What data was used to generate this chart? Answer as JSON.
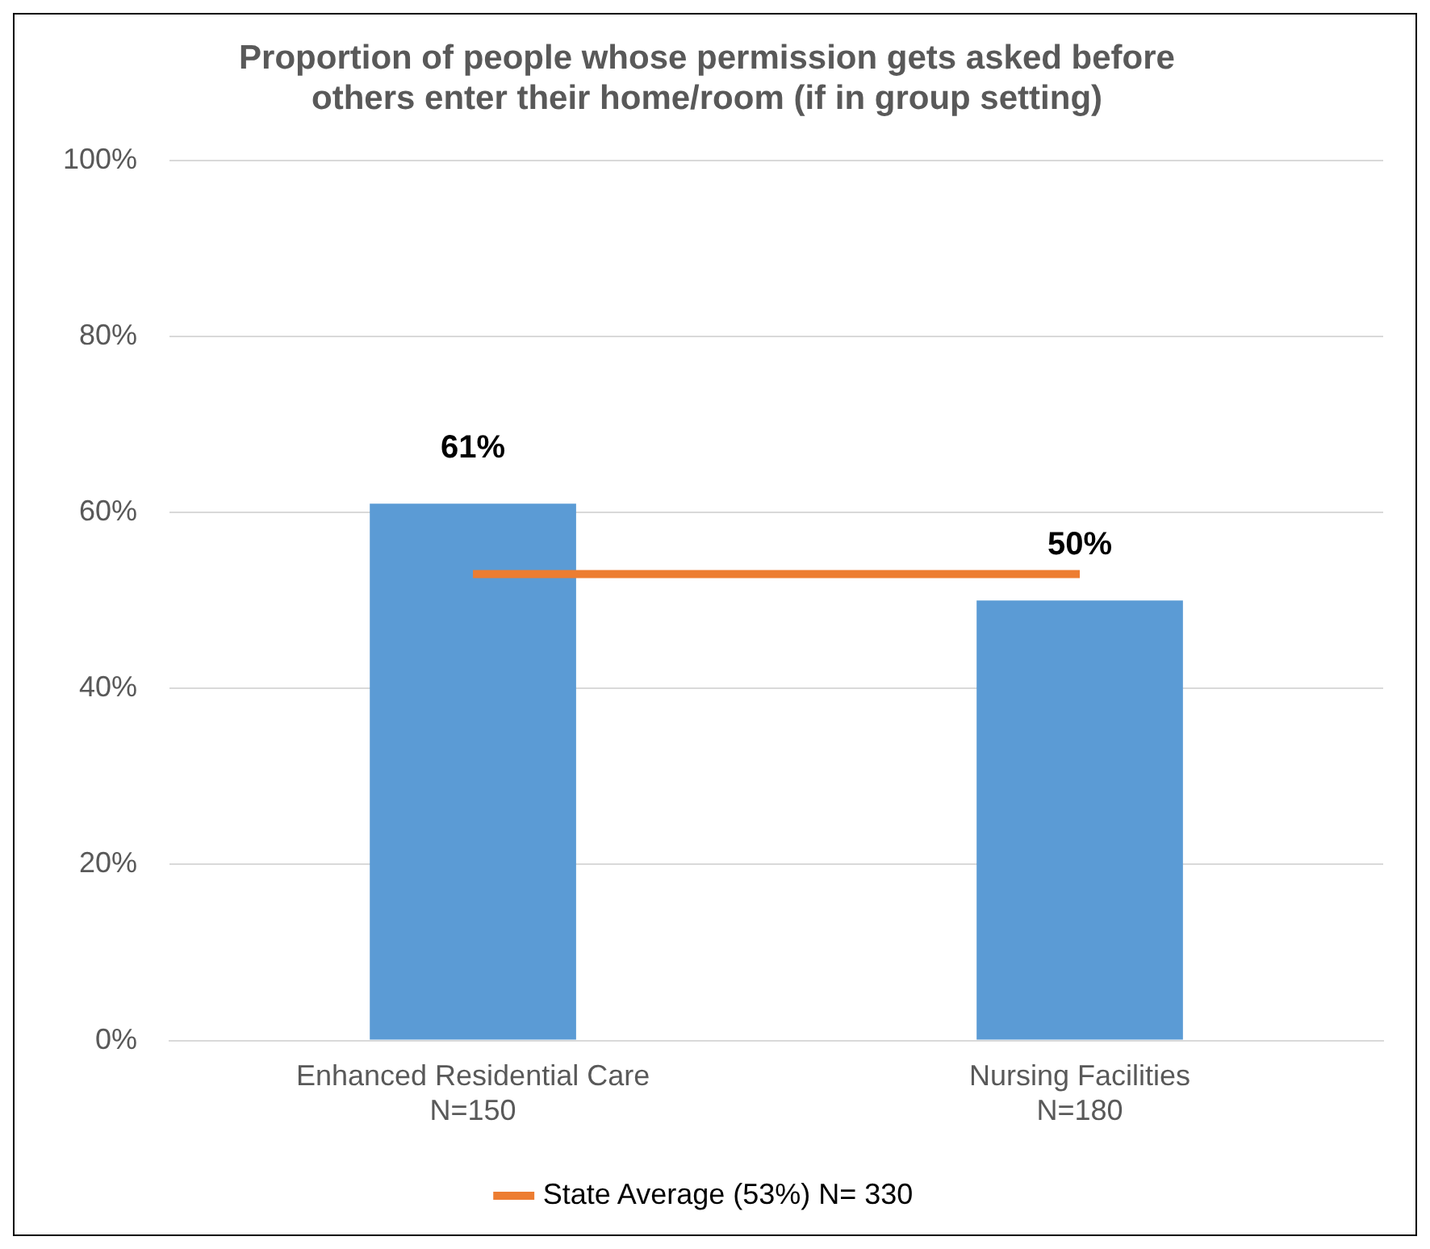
{
  "chart_data": {
    "type": "bar",
    "title": "Proportion of people whose permission gets asked before\nothers enter their home/room (if in group setting)",
    "categories": [
      "Enhanced Residential Care\nN=150",
      "Nursing Facilities\nN=180"
    ],
    "series": [
      {
        "color": "#5b9bd5",
        "values": [
          61,
          50
        ],
        "value_labels": [
          "61%",
          "50%"
        ]
      },
      {
        "type": "line",
        "name": "State Average (53%) N= 330",
        "color": "#ed7d31",
        "values": [
          53,
          53
        ],
        "marker": "none"
      }
    ],
    "ylim": [
      0,
      100
    ],
    "yticks": [
      {
        "value": 0,
        "label": "0%"
      },
      {
        "value": 20,
        "label": "20%"
      },
      {
        "value": 40,
        "label": "40%"
      },
      {
        "value": 60,
        "label": "60%"
      },
      {
        "value": 80,
        "label": "80%"
      },
      {
        "value": 100,
        "label": "100%"
      }
    ],
    "grid": "y",
    "legend": "bottom"
  }
}
